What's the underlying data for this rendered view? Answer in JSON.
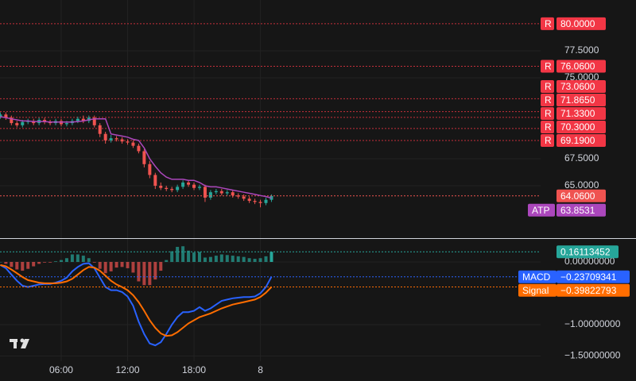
{
  "chart_data": [
    {
      "type": "candlestick",
      "x": [
        0.5,
        1,
        1.5,
        2,
        2.5,
        3,
        3.5,
        4,
        4.5,
        5,
        5.5,
        6,
        6.5,
        7,
        7.5,
        8,
        8.5,
        9,
        9.5,
        10,
        10.5,
        11,
        11.5,
        12,
        12.5,
        13,
        13.5,
        14,
        14.5,
        15,
        15.5,
        16,
        16.5,
        17,
        17.5,
        18,
        18.5,
        19,
        19.5,
        20,
        20.5,
        21,
        21.5,
        22,
        22.5,
        23,
        23.5,
        24,
        24.5,
        25
      ],
      "xlim": [
        0.47,
        49.32
      ],
      "xticks": [
        {
          "value": 6,
          "label": "06:00"
        },
        {
          "value": 12,
          "label": "12:00"
        },
        {
          "value": 18,
          "label": "18:00"
        },
        {
          "value": 24,
          "label": "8"
        }
      ],
      "open": [
        71.4,
        71.6,
        71.3,
        70.8,
        70.6,
        70.9,
        71.0,
        70.8,
        71.1,
        70.9,
        70.8,
        71.0,
        70.7,
        70.8,
        71.0,
        71.2,
        71.0,
        71.3,
        70.6,
        69.8,
        69.2,
        69.4,
        69.3,
        69.1,
        69.0,
        68.7,
        68.2,
        67.0,
        66.0,
        65.0,
        64.8,
        64.7,
        64.6,
        64.9,
        65.3,
        65.1,
        64.8,
        64.9,
        63.9,
        64.4,
        64.5,
        64.3,
        64.4,
        64.1,
        64.0,
        63.8,
        63.6,
        63.5,
        63.4,
        63.7
      ],
      "high": [
        71.8,
        71.8,
        71.5,
        71.0,
        71.1,
        71.2,
        71.2,
        71.3,
        71.3,
        71.1,
        71.2,
        71.2,
        71.0,
        71.2,
        71.4,
        71.5,
        71.5,
        71.5,
        70.8,
        70.0,
        69.7,
        69.6,
        69.5,
        69.3,
        69.2,
        68.9,
        68.4,
        67.3,
        66.2,
        65.3,
        65.0,
        64.9,
        65.1,
        65.5,
        65.5,
        65.3,
        65.1,
        65.1,
        64.6,
        64.7,
        64.7,
        64.6,
        64.6,
        64.3,
        64.2,
        64.0,
        63.8,
        63.7,
        63.9,
        64.2
      ],
      "low": [
        71.2,
        71.1,
        70.6,
        70.4,
        70.4,
        70.7,
        70.6,
        70.6,
        70.7,
        70.6,
        70.6,
        70.5,
        70.5,
        70.6,
        70.8,
        70.8,
        70.8,
        70.4,
        69.5,
        68.9,
        69.0,
        69.1,
        68.9,
        68.8,
        68.5,
        68.0,
        66.7,
        65.7,
        64.7,
        64.6,
        64.5,
        64.4,
        64.4,
        64.7,
        64.9,
        64.6,
        64.6,
        63.5,
        63.7,
        64.2,
        64.1,
        64.1,
        63.9,
        63.8,
        63.6,
        63.4,
        63.3,
        63.0,
        63.2,
        63.5
      ],
      "close": [
        71.6,
        71.3,
        70.8,
        70.6,
        70.9,
        71.0,
        70.8,
        71.1,
        70.9,
        70.8,
        71.0,
        70.7,
        70.8,
        71.0,
        71.2,
        71.0,
        71.3,
        70.6,
        69.8,
        69.2,
        69.4,
        69.3,
        69.1,
        69.0,
        68.7,
        68.2,
        67.0,
        66.0,
        65.0,
        64.8,
        64.7,
        64.6,
        64.9,
        65.3,
        65.1,
        64.8,
        64.9,
        63.9,
        64.4,
        64.5,
        64.3,
        64.4,
        64.1,
        64.0,
        63.8,
        63.6,
        63.5,
        63.4,
        63.7,
        64.06
      ],
      "up_color": "#26a69a",
      "down_color": "#ef5350",
      "last_label": "64.0600",
      "ylim": [
        60.15,
        82.2
      ],
      "yticks": [
        {
          "value": 77.5,
          "label": "77.5000"
        },
        {
          "value": 75,
          "label": "75.0000"
        },
        {
          "value": 67.5,
          "label": "67.5000"
        },
        {
          "value": 65,
          "label": "65.0000"
        }
      ],
      "grid": true,
      "levels": {
        "tag": "R",
        "color": "#f23645",
        "values": [
          80,
          76.06,
          73.06,
          71.865,
          71.33,
          70.3,
          69.19
        ],
        "value_labels": [
          "80.0000",
          "76.0600",
          "73.0600",
          "71.8650",
          "71.3300",
          "70.3000",
          "69.1900"
        ]
      },
      "series": [
        {
          "name": "ATP",
          "color": "#ab47bc",
          "values": [
            71.4,
            71.3,
            71.2,
            71.1,
            71.0,
            71.0,
            70.95,
            70.95,
            70.95,
            70.9,
            70.9,
            70.9,
            70.9,
            70.9,
            70.95,
            71.0,
            71.1,
            71.2,
            71.2,
            71.2,
            69.8,
            69.7,
            69.6,
            69.5,
            69.3,
            69.2,
            68.5,
            67.5,
            66.8,
            66.2,
            65.8,
            65.6,
            65.6,
            65.6,
            65.5,
            65.5,
            65.3,
            65.0,
            64.9,
            64.9,
            64.8,
            64.7,
            64.6,
            64.5,
            64.4,
            64.3,
            64.2,
            64.1,
            64.0,
            63.8531
          ],
          "last_label": "63.8531"
        }
      ]
    },
    {
      "type": "macd",
      "series": [
        {
          "name": "MACD",
          "color": "#2962ff",
          "values": [
            -0.05,
            -0.1,
            -0.2,
            -0.3,
            -0.38,
            -0.4,
            -0.38,
            -0.36,
            -0.35,
            -0.35,
            -0.33,
            -0.3,
            -0.25,
            -0.15,
            -0.08,
            -0.03,
            -0.02,
            -0.1,
            -0.25,
            -0.4,
            -0.45,
            -0.45,
            -0.48,
            -0.55,
            -0.7,
            -0.95,
            -1.15,
            -1.3,
            -1.33,
            -1.28,
            -1.15,
            -1.0,
            -0.88,
            -0.8,
            -0.8,
            -0.78,
            -0.72,
            -0.78,
            -0.74,
            -0.68,
            -0.62,
            -0.6,
            -0.58,
            -0.57,
            -0.56,
            -0.56,
            -0.55,
            -0.5,
            -0.4,
            -0.23709341
          ],
          "last_label": "−0.23709341"
        },
        {
          "name": "Signal",
          "color": "#ff6d00",
          "values": [
            -0.05,
            -0.07,
            -0.12,
            -0.18,
            -0.24,
            -0.29,
            -0.31,
            -0.33,
            -0.34,
            -0.34,
            -0.34,
            -0.33,
            -0.31,
            -0.27,
            -0.2,
            -0.13,
            -0.08,
            -0.09,
            -0.14,
            -0.22,
            -0.3,
            -0.36,
            -0.4,
            -0.45,
            -0.53,
            -0.64,
            -0.78,
            -0.93,
            -1.05,
            -1.14,
            -1.18,
            -1.17,
            -1.12,
            -1.05,
            -0.98,
            -0.93,
            -0.88,
            -0.85,
            -0.82,
            -0.78,
            -0.74,
            -0.71,
            -0.68,
            -0.66,
            -0.64,
            -0.62,
            -0.6,
            -0.56,
            -0.49,
            -0.39822793
          ],
          "last_label": "−0.39822793"
        }
      ],
      "histogram": {
        "values": [
          0,
          -0.03,
          -0.08,
          -0.12,
          -0.14,
          -0.11,
          -0.07,
          -0.03,
          -0.01,
          -0.01,
          0.01,
          0.03,
          0.06,
          0.12,
          0.12,
          0.1,
          0.06,
          -0.01,
          -0.11,
          -0.18,
          -0.15,
          -0.09,
          -0.08,
          -0.1,
          -0.17,
          -0.31,
          -0.37,
          -0.37,
          -0.28,
          -0.14,
          0.03,
          0.17,
          0.24,
          0.25,
          0.18,
          0.15,
          0.16,
          0.07,
          0.08,
          0.1,
          0.12,
          0.11,
          0.1,
          0.09,
          0.08,
          0.06,
          0.05,
          0.06,
          0.09,
          0.16113452
        ],
        "last_label": "0.16113452",
        "up_color": "#26a69a",
        "down_color": "#ef5350"
      },
      "ylim": [
        -1.582,
        0.367
      ],
      "yticks": [
        {
          "value": 0,
          "label": "0.00000000"
        },
        {
          "value": -1,
          "label": "−1.00000000"
        },
        {
          "value": -1.5,
          "label": "−1.50000000"
        }
      ],
      "grid": true
    }
  ]
}
